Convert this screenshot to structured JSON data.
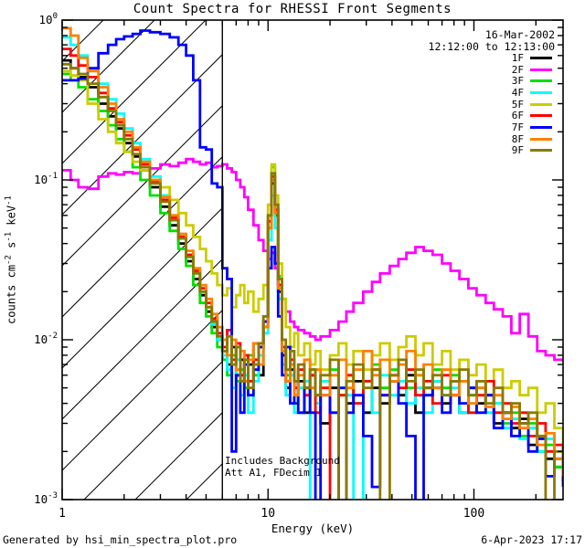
{
  "title": "Count Spectra for RHESSI Front Segments",
  "header": {
    "date": "16-Mar-2002",
    "time_range": "12:12:00 to 12:13:00"
  },
  "footer": {
    "left": "Generated by hsi_min_spectra_plot.pro",
    "right": "6-Apr-2023 17:17"
  },
  "annotation": {
    "line1": "Includes Background",
    "line2": "Att A1, FDecim 1"
  },
  "axes": {
    "xlabel": "Energy (keV)",
    "ylabel_parts": {
      "t1": "counts cm",
      "e1": "-2",
      "t2": " s",
      "e2": "-1",
      "t3": " keV",
      "e3": "-1"
    }
  },
  "colors": {
    "axis": "#000000",
    "background": "#ffffff"
  },
  "chart_data": {
    "type": "line",
    "title": "Count Spectra for RHESSI Front Segments",
    "xlabel": "Energy (keV)",
    "ylabel": "counts cm-2 s-1 keV-1",
    "x_scale": "log",
    "y_scale": "log",
    "xlim": [
      1,
      271
    ],
    "ylim": [
      0.001,
      1
    ],
    "x_major_ticks": [
      1,
      10,
      100
    ],
    "x_tick_labels": [
      "1",
      "10",
      "100"
    ],
    "y_major_exponents": [
      0,
      -1,
      -2,
      -3
    ],
    "legend_position": "top-right-inside",
    "grid": false,
    "hatch_region": {
      "from_kev": 1,
      "to_kev": 6,
      "style": "diagonal-lines",
      "line_spacing_px": 56
    },
    "vertical_line_kev": 6,
    "energies": [
      1.0,
      1.1,
      1.2,
      1.33,
      1.5,
      1.67,
      1.83,
      2.0,
      2.2,
      2.4,
      2.67,
      3.0,
      3.33,
      3.67,
      4.0,
      4.33,
      4.67,
      5.0,
      5.33,
      5.67,
      6.0,
      6.33,
      6.67,
      7.0,
      7.33,
      7.67,
      8.0,
      8.5,
      9.0,
      9.5,
      10.0,
      10.4,
      10.8,
      11.2,
      11.7,
      12.2,
      12.8,
      13.4,
      14.0,
      15.0,
      16.0,
      17.0,
      18.0,
      20.0,
      22.0,
      24.0,
      26.0,
      29.0,
      32.0,
      35.0,
      39.0,
      43.0,
      47.0,
      52.0,
      57.0,
      63.0,
      70.0,
      77.0,
      85.0,
      94.0,
      103.0,
      114.0,
      125.0,
      138.0,
      152.0,
      167.0,
      184.0,
      203.0,
      223.0,
      246.0,
      271.0
    ],
    "series": [
      {
        "name": "1F",
        "color": "#000000",
        "values": [
          0.56,
          0.5,
          0.44,
          0.38,
          0.3,
          0.25,
          0.21,
          0.17,
          0.14,
          0.115,
          0.09,
          0.068,
          0.052,
          0.04,
          0.031,
          0.024,
          0.019,
          0.015,
          0.012,
          0.01,
          0.0085,
          0.007,
          0.009,
          0.006,
          0.0075,
          0.0055,
          0.007,
          0.0095,
          0.006,
          0.012,
          0.05,
          0.095,
          0.06,
          0.02,
          0.008,
          0.005,
          0.0065,
          0.004,
          0.0055,
          0.0035,
          0.006,
          0.0045,
          0.003,
          0.005,
          0.0008,
          0.004,
          0.0055,
          0.0035,
          0.005,
          0.004,
          0.0055,
          0.0045,
          0.006,
          0.0035,
          0.005,
          0.0055,
          0.004,
          0.0045,
          0.0035,
          0.005,
          0.004,
          0.0045,
          0.003,
          0.0035,
          0.0028,
          0.0032,
          0.0022,
          0.0025,
          0.0018,
          0.0016,
          0.0013
        ]
      },
      {
        "name": "2F",
        "color": "#ff00ff",
        "values": [
          0.115,
          0.1,
          0.09,
          0.088,
          0.105,
          0.11,
          0.108,
          0.112,
          0.11,
          0.115,
          0.118,
          0.125,
          0.122,
          0.128,
          0.135,
          0.13,
          0.125,
          0.128,
          0.12,
          0.122,
          0.125,
          0.118,
          0.112,
          0.1,
          0.09,
          0.078,
          0.065,
          0.052,
          0.042,
          0.036,
          0.032,
          0.035,
          0.028,
          0.022,
          0.018,
          0.015,
          0.013,
          0.012,
          0.0115,
          0.011,
          0.0105,
          0.01,
          0.0105,
          0.0115,
          0.013,
          0.015,
          0.017,
          0.02,
          0.023,
          0.026,
          0.029,
          0.032,
          0.035,
          0.038,
          0.036,
          0.034,
          0.03,
          0.027,
          0.024,
          0.021,
          0.019,
          0.017,
          0.0155,
          0.014,
          0.011,
          0.0145,
          0.0105,
          0.0085,
          0.008,
          0.0075,
          0.0073
        ]
      },
      {
        "name": "3F",
        "color": "#00e000",
        "values": [
          0.46,
          0.42,
          0.38,
          0.32,
          0.27,
          0.22,
          0.18,
          0.15,
          0.12,
          0.1,
          0.08,
          0.062,
          0.048,
          0.037,
          0.029,
          0.022,
          0.017,
          0.014,
          0.011,
          0.009,
          0.0075,
          0.006,
          0.008,
          0.0055,
          0.0065,
          0.005,
          0.008,
          0.006,
          0.009,
          0.014,
          0.06,
          0.12,
          0.07,
          0.025,
          0.009,
          0.006,
          0.004,
          0.0055,
          0.0035,
          0.005,
          0.0065,
          0.004,
          0.0055,
          0.0065,
          0.0045,
          0.006,
          0.004,
          0.0055,
          0.007,
          0.005,
          0.0065,
          0.0075,
          0.005,
          0.006,
          0.0045,
          0.0065,
          0.005,
          0.006,
          0.004,
          0.0045,
          0.0055,
          0.0035,
          0.004,
          0.003,
          0.0035,
          0.0025,
          0.003,
          0.002,
          0.0022,
          0.0016,
          0.0014
        ]
      },
      {
        "name": "4F",
        "color": "#00ffff",
        "values": [
          0.78,
          0.7,
          0.6,
          0.5,
          0.4,
          0.32,
          0.26,
          0.21,
          0.17,
          0.135,
          0.105,
          0.08,
          0.06,
          0.045,
          0.034,
          0.026,
          0.02,
          0.016,
          0.0125,
          0.01,
          0.008,
          0.0065,
          0.005,
          0.0075,
          0.0045,
          0.006,
          0.0035,
          0.0055,
          0.008,
          0.011,
          0.042,
          0.08,
          0.05,
          0.018,
          0.007,
          0.0045,
          0.006,
          0.0035,
          0.005,
          0.0055,
          0.0008,
          0.004,
          0.0055,
          0.0035,
          0.005,
          0.0045,
          0.0006,
          0.0055,
          0.0035,
          0.006,
          0.0045,
          0.0055,
          0.004,
          0.005,
          0.0035,
          0.0055,
          0.0045,
          0.005,
          0.0035,
          0.004,
          0.005,
          0.0035,
          0.004,
          0.0028,
          0.0032,
          0.0024,
          0.0028,
          0.002,
          0.0024,
          0.0018,
          0.0015
        ]
      },
      {
        "name": "5F",
        "color": "#cccc00",
        "values": [
          0.48,
          0.45,
          0.42,
          0.3,
          0.24,
          0.2,
          0.17,
          0.15,
          0.13,
          0.115,
          0.1,
          0.09,
          0.075,
          0.062,
          0.052,
          0.044,
          0.037,
          0.031,
          0.026,
          0.022,
          0.019,
          0.021,
          0.016,
          0.019,
          0.022,
          0.017,
          0.02,
          0.015,
          0.018,
          0.022,
          0.07,
          0.125,
          0.08,
          0.03,
          0.018,
          0.012,
          0.009,
          0.011,
          0.008,
          0.0095,
          0.007,
          0.0085,
          0.0065,
          0.008,
          0.0095,
          0.007,
          0.0085,
          0.0065,
          0.008,
          0.0095,
          0.0075,
          0.009,
          0.0105,
          0.008,
          0.0095,
          0.007,
          0.0085,
          0.0065,
          0.0075,
          0.006,
          0.007,
          0.0055,
          0.0065,
          0.005,
          0.0055,
          0.0045,
          0.005,
          0.0035,
          0.004,
          0.0028,
          0.0022
        ]
      },
      {
        "name": "6F",
        "color": "#ff0000",
        "values": [
          0.66,
          0.6,
          0.52,
          0.44,
          0.35,
          0.28,
          0.23,
          0.19,
          0.155,
          0.125,
          0.098,
          0.075,
          0.058,
          0.044,
          0.034,
          0.027,
          0.021,
          0.017,
          0.0135,
          0.011,
          0.009,
          0.0115,
          0.0075,
          0.0095,
          0.006,
          0.008,
          0.0055,
          0.0075,
          0.0095,
          0.013,
          0.055,
          0.105,
          0.065,
          0.022,
          0.009,
          0.0055,
          0.0075,
          0.005,
          0.0065,
          0.0045,
          0.006,
          0.0035,
          0.005,
          0.0007,
          0.0045,
          0.006,
          0.004,
          0.0055,
          0.0065,
          0.0045,
          0.006,
          0.005,
          0.0065,
          0.0045,
          0.0055,
          0.004,
          0.006,
          0.0045,
          0.0055,
          0.0035,
          0.0045,
          0.0055,
          0.0035,
          0.004,
          0.003,
          0.0035,
          0.0025,
          0.003,
          0.002,
          0.0022,
          0.0015
        ]
      },
      {
        "name": "7F",
        "color": "#0000ff",
        "values": [
          0.42,
          0.42,
          0.43,
          0.5,
          0.62,
          0.7,
          0.76,
          0.79,
          0.82,
          0.86,
          0.84,
          0.82,
          0.78,
          0.7,
          0.6,
          0.42,
          0.16,
          0.155,
          0.095,
          0.09,
          0.028,
          0.024,
          0.002,
          0.006,
          0.0035,
          0.007,
          0.0045,
          0.0065,
          0.009,
          0.013,
          0.028,
          0.038,
          0.03,
          0.014,
          0.006,
          0.009,
          0.004,
          0.0055,
          0.0035,
          0.005,
          0.0035,
          0.0007,
          0.0045,
          0.0035,
          0.005,
          0.0035,
          0.0045,
          0.0025,
          0.0012,
          0.0045,
          0.0055,
          0.004,
          0.0025,
          0.0006,
          0.0045,
          0.005,
          0.0035,
          0.0055,
          0.004,
          0.005,
          0.0035,
          0.0045,
          0.0028,
          0.0035,
          0.0025,
          0.003,
          0.002,
          0.0024,
          0.0014,
          0.0018,
          0.0012
        ]
      },
      {
        "name": "8F",
        "color": "#ff8000",
        "values": [
          0.89,
          0.8,
          0.58,
          0.48,
          0.38,
          0.3,
          0.24,
          0.2,
          0.16,
          0.13,
          0.1,
          0.078,
          0.06,
          0.046,
          0.036,
          0.028,
          0.022,
          0.018,
          0.0145,
          0.012,
          0.01,
          0.008,
          0.01,
          0.0065,
          0.0085,
          0.0055,
          0.0075,
          0.0095,
          0.007,
          0.012,
          0.05,
          0.1,
          0.062,
          0.021,
          0.0085,
          0.0055,
          0.007,
          0.0045,
          0.006,
          0.0075,
          0.005,
          0.0065,
          0.0045,
          0.006,
          0.0075,
          0.005,
          0.0065,
          0.0085,
          0.006,
          0.0075,
          0.0055,
          0.007,
          0.0085,
          0.006,
          0.007,
          0.005,
          0.0065,
          0.0045,
          0.0055,
          0.004,
          0.005,
          0.0038,
          0.0045,
          0.0032,
          0.0038,
          0.0028,
          0.0032,
          0.0022,
          0.0026,
          0.0018,
          0.0014
        ]
      },
      {
        "name": "9F",
        "color": "#8a7a00",
        "values": [
          0.53,
          0.5,
          0.46,
          0.4,
          0.33,
          0.27,
          0.22,
          0.18,
          0.145,
          0.12,
          0.095,
          0.073,
          0.056,
          0.043,
          0.033,
          0.026,
          0.02,
          0.016,
          0.013,
          0.0105,
          0.0085,
          0.0105,
          0.007,
          0.009,
          0.0055,
          0.0075,
          0.005,
          0.007,
          0.0095,
          0.014,
          0.06,
          0.11,
          0.07,
          0.024,
          0.01,
          0.0065,
          0.0085,
          0.0055,
          0.007,
          0.005,
          0.0065,
          0.0045,
          0.006,
          0.0075,
          0.0008,
          0.0055,
          0.007,
          0.005,
          0.0065,
          0.0007,
          0.006,
          0.0075,
          0.0055,
          0.0065,
          0.005,
          0.006,
          0.0045,
          0.0055,
          0.0065,
          0.0045,
          0.0055,
          0.004,
          0.005,
          0.0035,
          0.004,
          0.003,
          0.0035,
          0.0025,
          0.0009,
          0.002,
          0.0016
        ]
      }
    ]
  }
}
